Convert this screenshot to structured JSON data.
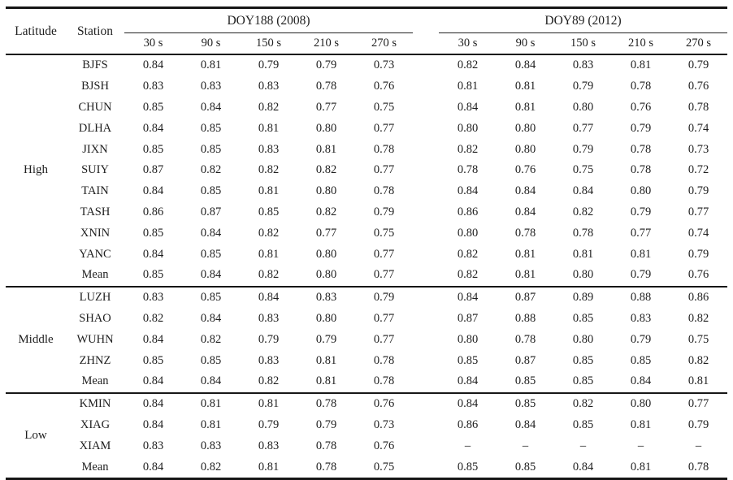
{
  "table": {
    "headers": {
      "latitude": "Latitude",
      "station": "Station",
      "group1": "DOY188 (2008)",
      "group2": "DOY89 (2012)",
      "sub_labels": [
        "30 s",
        "90 s",
        "150 s",
        "210 s",
        "270 s"
      ]
    },
    "groups": [
      {
        "latitude": "High",
        "rows": [
          {
            "station": "BJFS",
            "doy188": [
              "0.84",
              "0.81",
              "0.79",
              "0.79",
              "0.73"
            ],
            "doy89": [
              "0.82",
              "0.84",
              "0.83",
              "0.81",
              "0.79"
            ]
          },
          {
            "station": "BJSH",
            "doy188": [
              "0.83",
              "0.83",
              "0.83",
              "0.78",
              "0.76"
            ],
            "doy89": [
              "0.81",
              "0.81",
              "0.79",
              "0.78",
              "0.76"
            ]
          },
          {
            "station": "CHUN",
            "doy188": [
              "0.85",
              "0.84",
              "0.82",
              "0.77",
              "0.75"
            ],
            "doy89": [
              "0.84",
              "0.81",
              "0.80",
              "0.76",
              "0.78"
            ]
          },
          {
            "station": "DLHA",
            "doy188": [
              "0.84",
              "0.85",
              "0.81",
              "0.80",
              "0.77"
            ],
            "doy89": [
              "0.80",
              "0.80",
              "0.77",
              "0.79",
              "0.74"
            ]
          },
          {
            "station": "JIXN",
            "doy188": [
              "0.85",
              "0.85",
              "0.83",
              "0.81",
              "0.78"
            ],
            "doy89": [
              "0.82",
              "0.80",
              "0.79",
              "0.78",
              "0.73"
            ]
          },
          {
            "station": "SUIY",
            "doy188": [
              "0.87",
              "0.82",
              "0.82",
              "0.82",
              "0.77"
            ],
            "doy89": [
              "0.78",
              "0.76",
              "0.75",
              "0.78",
              "0.72"
            ]
          },
          {
            "station": "TAIN",
            "doy188": [
              "0.84",
              "0.85",
              "0.81",
              "0.80",
              "0.78"
            ],
            "doy89": [
              "0.84",
              "0.84",
              "0.84",
              "0.80",
              "0.79"
            ]
          },
          {
            "station": "TASH",
            "doy188": [
              "0.86",
              "0.87",
              "0.85",
              "0.82",
              "0.79"
            ],
            "doy89": [
              "0.86",
              "0.84",
              "0.82",
              "0.79",
              "0.77"
            ]
          },
          {
            "station": "XNIN",
            "doy188": [
              "0.85",
              "0.84",
              "0.82",
              "0.77",
              "0.75"
            ],
            "doy89": [
              "0.80",
              "0.78",
              "0.78",
              "0.77",
              "0.74"
            ]
          },
          {
            "station": "YANC",
            "doy188": [
              "0.84",
              "0.85",
              "0.81",
              "0.80",
              "0.77"
            ],
            "doy89": [
              "0.82",
              "0.81",
              "0.81",
              "0.81",
              "0.79"
            ]
          },
          {
            "station": "Mean",
            "doy188": [
              "0.85",
              "0.84",
              "0.82",
              "0.80",
              "0.77"
            ],
            "doy89": [
              "0.82",
              "0.81",
              "0.80",
              "0.79",
              "0.76"
            ]
          }
        ]
      },
      {
        "latitude": "Middle",
        "rows": [
          {
            "station": "LUZH",
            "doy188": [
              "0.83",
              "0.85",
              "0.84",
              "0.83",
              "0.79"
            ],
            "doy89": [
              "0.84",
              "0.87",
              "0.89",
              "0.88",
              "0.86"
            ]
          },
          {
            "station": "SHAO",
            "doy188": [
              "0.82",
              "0.84",
              "0.83",
              "0.80",
              "0.77"
            ],
            "doy89": [
              "0.87",
              "0.88",
              "0.85",
              "0.83",
              "0.82"
            ]
          },
          {
            "station": "WUHN",
            "doy188": [
              "0.84",
              "0.82",
              "0.79",
              "0.79",
              "0.77"
            ],
            "doy89": [
              "0.80",
              "0.78",
              "0.80",
              "0.79",
              "0.75"
            ]
          },
          {
            "station": "ZHNZ",
            "doy188": [
              "0.85",
              "0.85",
              "0.83",
              "0.81",
              "0.78"
            ],
            "doy89": [
              "0.85",
              "0.87",
              "0.85",
              "0.85",
              "0.82"
            ]
          },
          {
            "station": "Mean",
            "doy188": [
              "0.84",
              "0.84",
              "0.82",
              "0.81",
              "0.78"
            ],
            "doy89": [
              "0.84",
              "0.85",
              "0.85",
              "0.84",
              "0.81"
            ]
          }
        ]
      },
      {
        "latitude": "Low",
        "rows": [
          {
            "station": "KMIN",
            "doy188": [
              "0.84",
              "0.81",
              "0.81",
              "0.78",
              "0.76"
            ],
            "doy89": [
              "0.84",
              "0.85",
              "0.82",
              "0.80",
              "0.77"
            ]
          },
          {
            "station": "XIAG",
            "doy188": [
              "0.84",
              "0.81",
              "0.79",
              "0.79",
              "0.73"
            ],
            "doy89": [
              "0.86",
              "0.84",
              "0.85",
              "0.81",
              "0.79"
            ]
          },
          {
            "station": "XIAM",
            "doy188": [
              "0.83",
              "0.83",
              "0.83",
              "0.78",
              "0.76"
            ],
            "doy89": [
              "–",
              "–",
              "–",
              "–",
              "–"
            ]
          },
          {
            "station": "Mean",
            "doy188": [
              "0.84",
              "0.82",
              "0.81",
              "0.78",
              "0.75"
            ],
            "doy89": [
              "0.85",
              "0.85",
              "0.84",
              "0.81",
              "0.78"
            ]
          }
        ]
      }
    ],
    "colors": {
      "text": "#1f1f1f",
      "rule": "#161616",
      "background": "#ffffff"
    }
  }
}
